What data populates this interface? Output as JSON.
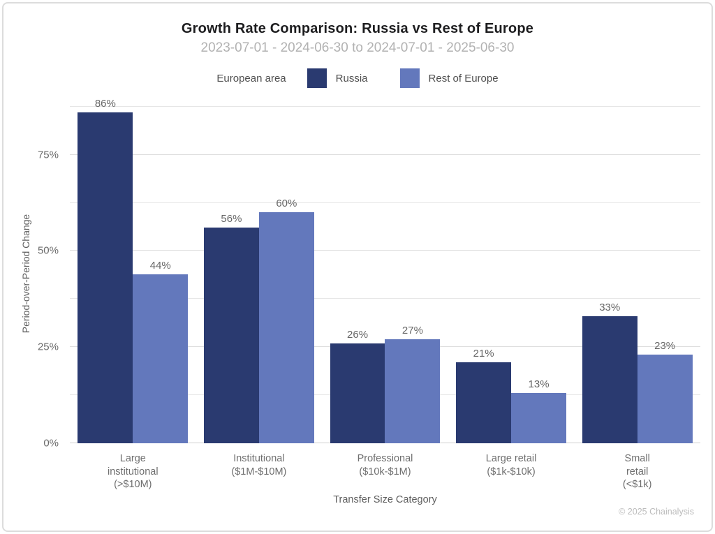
{
  "page": {
    "title": "Growth Rate Comparison: Russia vs Rest of Europe",
    "subtitle": "2023-07-01 - 2024-06-30 to 2024-07-01 - 2025-06-30",
    "footer": "© 2025 Chainalysis"
  },
  "legend": {
    "title": "European area",
    "items": [
      {
        "label": "Russia",
        "color": "#2a3a70"
      },
      {
        "label": "Rest of Europe",
        "color": "#6378bc"
      }
    ]
  },
  "chart_data": {
    "type": "bar",
    "title": "Growth Rate Comparison: Russia vs Rest of Europe",
    "subtitle": "2023-07-01 - 2024-06-30 to 2024-07-01 - 2025-06-30",
    "categories": [
      "Large\ninstitutional\n(>$10M)",
      "Institutional\n($1M-$10M)",
      "Professional\n($10k-$1M)",
      "Large retail\n($1k-$10k)",
      "Small\nretail\n(<$1k)"
    ],
    "series": [
      {
        "name": "Russia",
        "color": "#2a3a70",
        "values": [
          86,
          56,
          26,
          21,
          33
        ]
      },
      {
        "name": "Rest of Europe",
        "color": "#6378bc",
        "values": [
          44,
          60,
          27,
          13,
          23
        ]
      }
    ],
    "value_suffix": "%",
    "xlabel": "Transfer Size Category",
    "ylabel": "Period-over-Period Change",
    "ylim": [
      0,
      88
    ],
    "yticks": [
      0,
      25,
      50,
      75
    ],
    "ytick_labels": [
      "0%",
      "25%",
      "50%",
      "75%"
    ],
    "grid_step": 12.5,
    "grid": true,
    "legend_position": "top"
  }
}
